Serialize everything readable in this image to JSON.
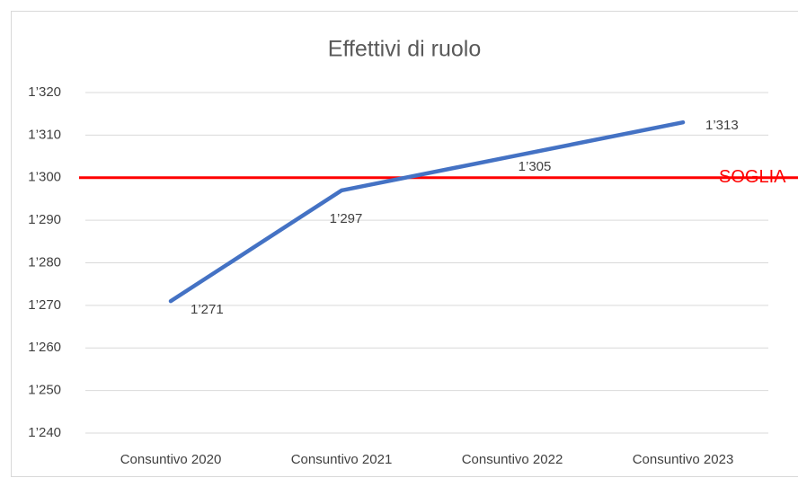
{
  "chart_data": {
    "type": "line",
    "title": "Effettivi di ruolo",
    "categories": [
      "Consuntivo 2020",
      "Consuntivo 2021",
      "Consuntivo 2022",
      "Consuntivo 2023"
    ],
    "series": [
      {
        "color": "#4472c4",
        "values": [
          1271,
          1297,
          1305,
          1313
        ],
        "value_labels": [
          "1’271",
          "1’297",
          "1’305",
          "1’313"
        ]
      }
    ],
    "ylim": [
      1240,
      1320
    ],
    "yticks": [
      {
        "value": 1240,
        "label": "1’240"
      },
      {
        "value": 1250,
        "label": "1’250"
      },
      {
        "value": 1260,
        "label": "1’260"
      },
      {
        "value": 1270,
        "label": "1’270"
      },
      {
        "value": 1280,
        "label": "1’280"
      },
      {
        "value": 1290,
        "label": "1’290"
      },
      {
        "value": 1300,
        "label": "1’300"
      },
      {
        "value": 1310,
        "label": "1’310"
      },
      {
        "value": 1320,
        "label": "1’320"
      }
    ],
    "grid": true,
    "threshold": {
      "value": 1300,
      "label": "SOGLIA",
      "color": "#ff0000"
    }
  }
}
